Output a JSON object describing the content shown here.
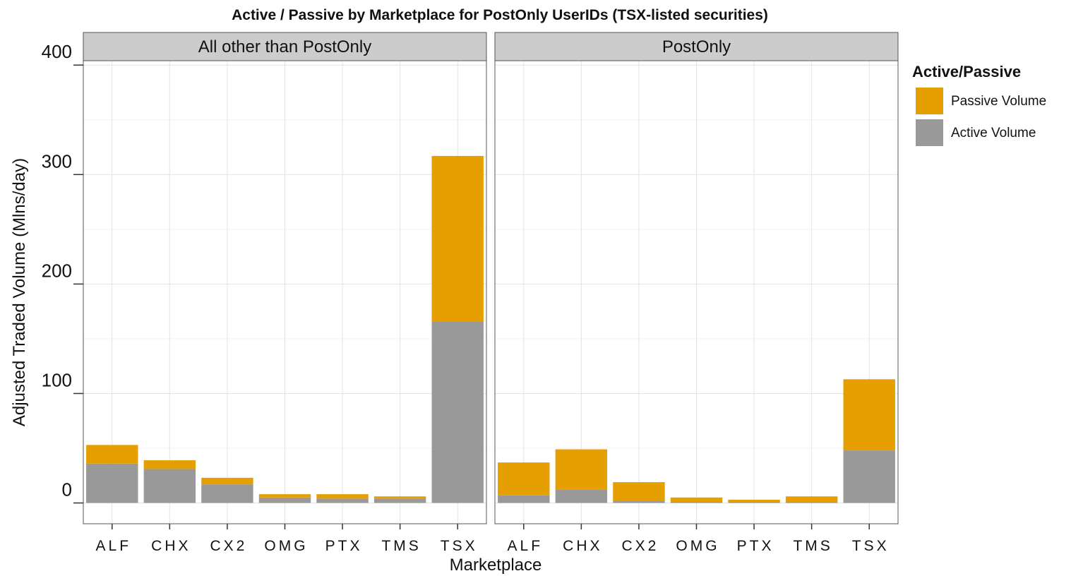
{
  "chart_data": {
    "type": "bar",
    "stacked": true,
    "title": "Active / Passive by Marketplace for PostOnly UserIDs  (TSX-listed securities)",
    "xlabel": "Marketplace",
    "ylabel": "Adjusted Traded Volume (Mlns/day)",
    "ylim": [
      -19,
      404
    ],
    "ytick_values": [
      0,
      100,
      200,
      300,
      400
    ],
    "yticks": [
      "0",
      "100",
      "200",
      "300",
      "400"
    ],
    "grid": true,
    "legend": {
      "title": "Active/Passive",
      "position": "right",
      "entries": [
        "Passive Volume",
        "Active Volume"
      ]
    },
    "colors": {
      "Passive Volume": "#E69F00",
      "Active Volume": "#999999"
    },
    "categories": [
      "ALF",
      "CHX",
      "CX2",
      "OMG",
      "PTX",
      "TMS",
      "TSX"
    ],
    "facets": [
      {
        "label": "All other than PostOnly",
        "series": [
          {
            "name": "Active Volume",
            "values": [
              36,
              31,
              17,
              5,
              4,
              4,
              166
            ]
          },
          {
            "name": "Passive Volume",
            "values": [
              17,
              8,
              6,
              3,
              4,
              2,
              151
            ]
          }
        ]
      },
      {
        "label": "PostOnly",
        "series": [
          {
            "name": "Active Volume",
            "values": [
              7,
              12,
              2,
              1,
              1,
              1,
              48
            ]
          },
          {
            "name": "Passive Volume",
            "values": [
              30,
              37,
              17,
              4,
              2,
              5,
              65
            ]
          }
        ]
      }
    ]
  }
}
